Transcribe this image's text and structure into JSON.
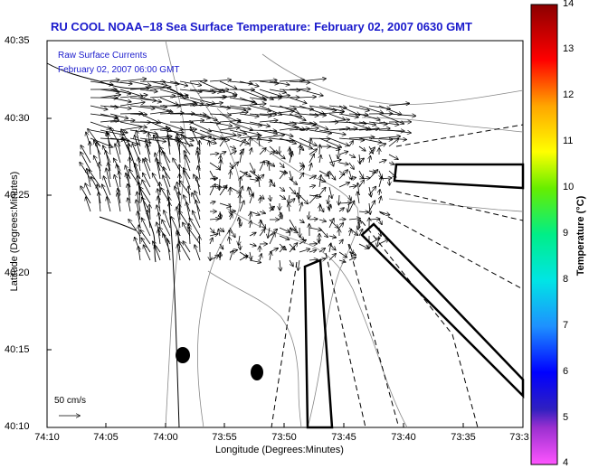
{
  "title": "RU COOL  NOAA−18  Sea Surface Temperature:  February 02, 2007 0630 GMT",
  "legend": {
    "line1": "Raw Surface Currents",
    "line2": "February 02, 2007 06:00 GMT"
  },
  "axes": {
    "xlabel": "Longitude (Degrees:Minutes)",
    "ylabel": "Latitude (Degrees:Minutes)",
    "xticks": [
      "74:10",
      "74:05",
      "74:00",
      "73:55",
      "73:50",
      "73:45",
      "73:40",
      "73:35",
      "73:3"
    ],
    "yticks": [
      "40:35",
      "40:30",
      "40:25",
      "40:20",
      "40:15",
      "40:10"
    ]
  },
  "colorbar": {
    "label": "Temperature (°C)",
    "ticks": [
      "14",
      "13",
      "12",
      "11",
      "10",
      "9",
      "8",
      "7",
      "6",
      "5",
      "4"
    ],
    "colors": [
      "#ff66ff",
      "#8a2be2",
      "#0000ff",
      "#1e90ff",
      "#00ffff",
      "#00ff7f",
      "#7fff00",
      "#ffff00",
      "#ffa500",
      "#ff0000",
      "#8b0000"
    ]
  },
  "scale": {
    "label": "50 cm/s"
  }
}
